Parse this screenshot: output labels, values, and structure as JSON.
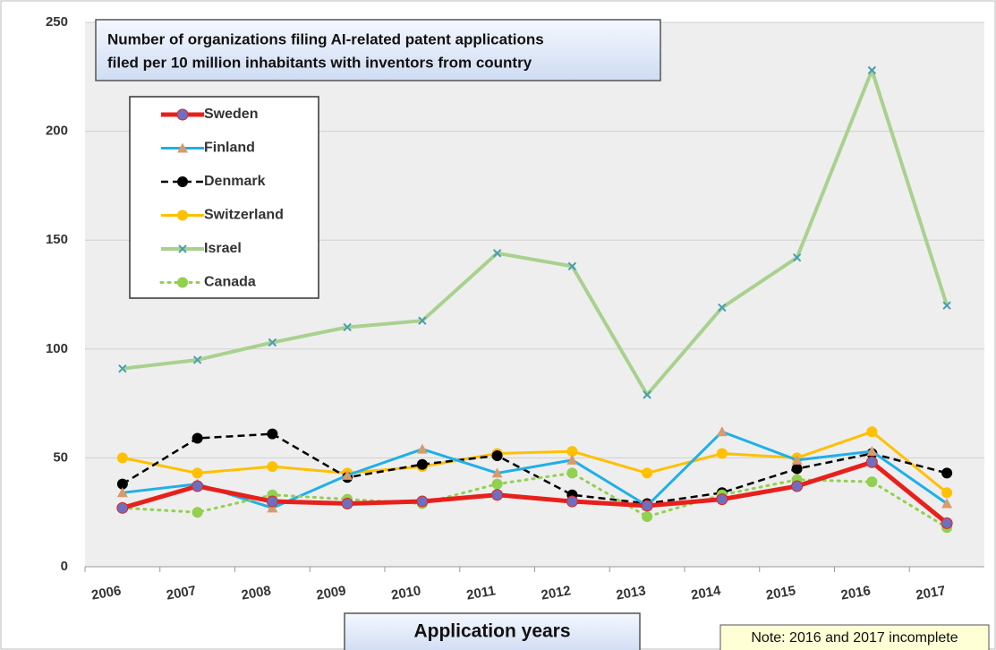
{
  "chart_data": {
    "type": "line",
    "title": [
      "Number of organizations filing AI-related patent applications",
      "filed per 10 million inhabitants with inventors from country"
    ],
    "x_label": "Application years",
    "note": "Note: 2016 and 2017 incomplete",
    "categories": [
      "2006",
      "2007",
      "2008",
      "2009",
      "2010",
      "2011",
      "2012",
      "2013",
      "2014",
      "2015",
      "2016",
      "2017"
    ],
    "ylim": [
      0,
      250
    ],
    "yticks": [
      0,
      50,
      100,
      150,
      200,
      250
    ],
    "grid": true,
    "series": [
      {
        "name": "Sweden",
        "color": "#e8201b",
        "marker": "circle",
        "marker_color": "#6f6fbf",
        "dash": "solid",
        "width": 5,
        "values": [
          27,
          37,
          30,
          29,
          30,
          33,
          30,
          28,
          31,
          37,
          48,
          20
        ]
      },
      {
        "name": "Finland",
        "color": "#1fb0e8",
        "marker": "triangle",
        "marker_color": "#d99a6c",
        "dash": "solid",
        "width": 3,
        "values": [
          34,
          38,
          27,
          42,
          54,
          43,
          49,
          28,
          62,
          49,
          53,
          29
        ]
      },
      {
        "name": "Denmark",
        "color": "#000000",
        "marker": "circle",
        "marker_color": "#000000",
        "dash": "dashed",
        "width": 2.5,
        "values": [
          38,
          59,
          61,
          41,
          47,
          51,
          33,
          29,
          34,
          45,
          52,
          43
        ]
      },
      {
        "name": "Switzerland",
        "color": "#ffc000",
        "marker": "circle",
        "marker_color": "#ffc000",
        "dash": "solid",
        "width": 3,
        "values": [
          50,
          43,
          46,
          43,
          46,
          52,
          53,
          43,
          52,
          50,
          62,
          34
        ]
      },
      {
        "name": "Israel",
        "color": "#a9d18e",
        "marker": "x",
        "marker_color": "#4a9fb0",
        "dash": "solid",
        "width": 4,
        "values": [
          91,
          95,
          103,
          110,
          113,
          144,
          138,
          79,
          119,
          142,
          228,
          120
        ]
      },
      {
        "name": "Canada",
        "color": "#92d050",
        "marker": "circle",
        "marker_color": "#92d050",
        "dash": "dotted",
        "width": 3,
        "values": [
          27,
          25,
          33,
          31,
          29,
          38,
          43,
          23,
          33,
          40,
          39,
          18
        ]
      }
    ]
  }
}
